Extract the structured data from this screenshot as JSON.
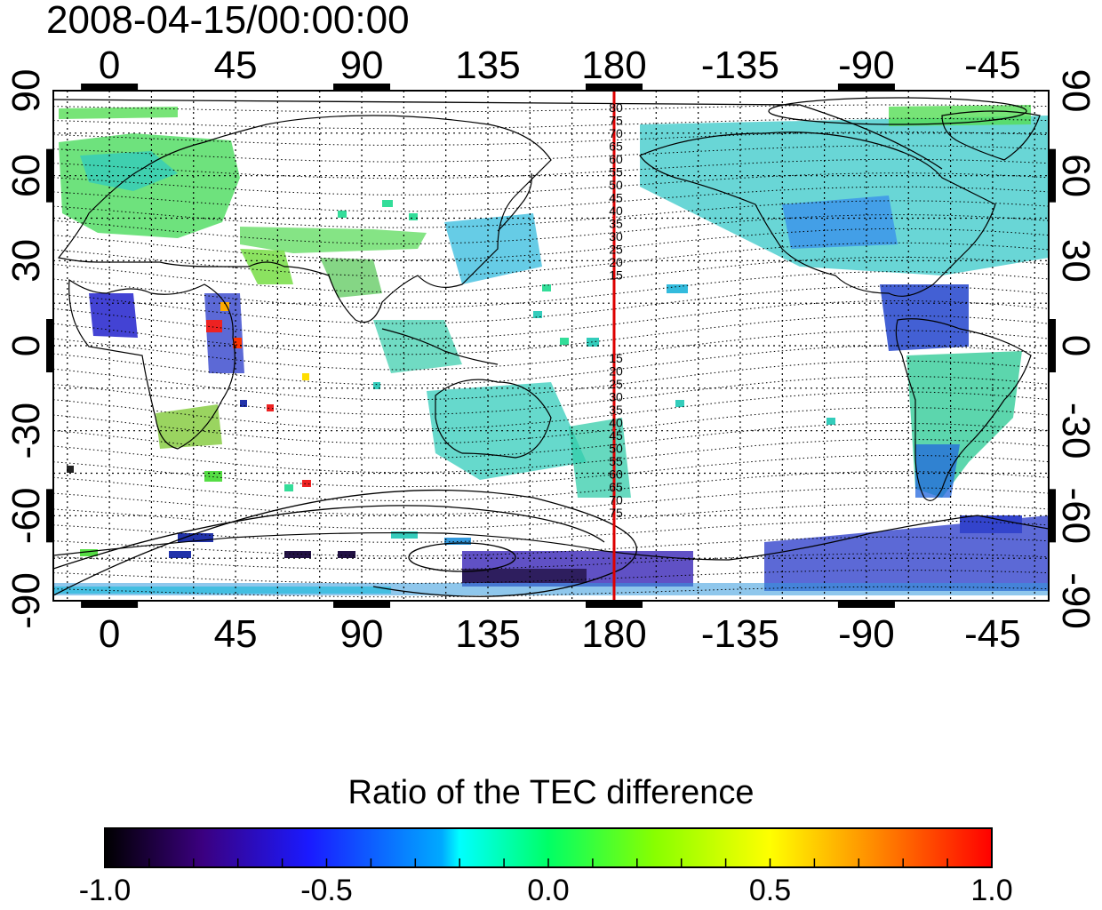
{
  "timestamp": "2008-04-15/00:00:00",
  "map": {
    "top_lon_ticks": [
      "0",
      "45",
      "90",
      "135",
      "180",
      "-135",
      "-90",
      "-45"
    ],
    "bottom_lon_ticks": [
      "0",
      "45",
      "90",
      "135",
      "180",
      "-135",
      "-90",
      "-45"
    ],
    "left_lat_ticks": [
      "90",
      "60",
      "30",
      "0",
      "-30",
      "-60",
      "-90"
    ],
    "right_lat_ticks": [
      "90",
      "60",
      "30",
      "0",
      "-30",
      "-60",
      "-90"
    ],
    "lon_tick_values": [
      0,
      45,
      90,
      135,
      180,
      225,
      270,
      315
    ],
    "lat_tick_values": [
      90,
      60,
      30,
      0,
      -30,
      -60,
      -90
    ],
    "lon_range": [
      -20,
      335
    ],
    "lat_range": [
      -90,
      90
    ],
    "grid": true,
    "meridian_line_lon": 180,
    "meridian_line_color": "#dd0000",
    "contour_labels_north": [
      "80",
      "75",
      "70",
      "65",
      "60",
      "55",
      "50",
      "45",
      "40",
      "35",
      "30",
      "25",
      "20",
      "15"
    ],
    "contour_labels_south": [
      "15",
      "20",
      "25",
      "30",
      "35",
      "40",
      "45",
      "50",
      "55",
      "60",
      "65",
      "70",
      "75"
    ]
  },
  "colorbar": {
    "title": "Ratio of the TEC difference",
    "tick_labels": [
      "-1.0",
      "-0.5",
      "0.0",
      "0.5",
      "1.0"
    ],
    "tick_values": [
      -1.0,
      -0.5,
      0.0,
      0.5,
      1.0
    ],
    "colors": [
      "#000000",
      "#3b0080",
      "#1a1aff",
      "#00aaff",
      "#00ffff",
      "#00ff66",
      "#88ff00",
      "#ffff00",
      "#ff8800",
      "#ff0000"
    ]
  }
}
